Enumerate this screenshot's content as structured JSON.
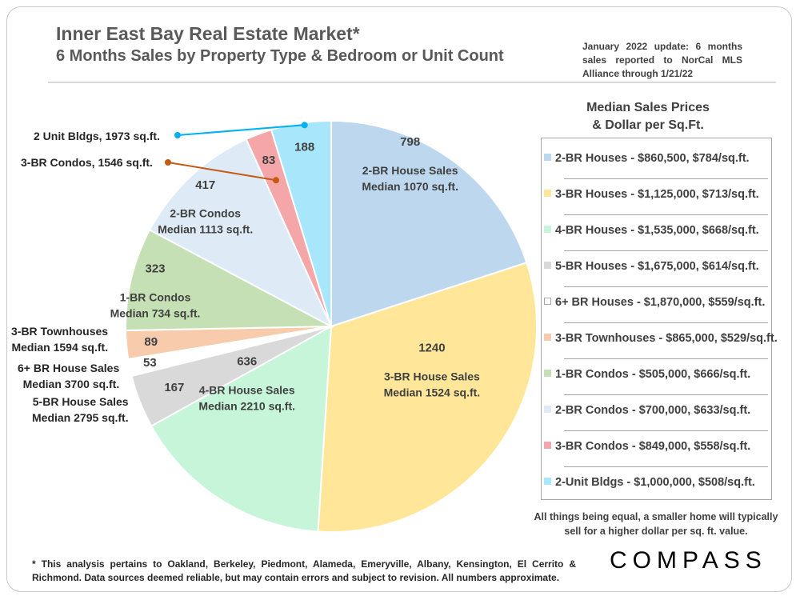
{
  "header": {
    "title": "Inner East Bay Real Estate Market*",
    "subtitle": "6 Months Sales by Property Type & Bedroom or Unit Count",
    "update_note": "January 2022 update: 6 months sales reported to NorCal MLS Alliance through 1/21/22"
  },
  "legend": {
    "title_line1": "Median Sales Prices",
    "title_line2": "& Dollar per Sq.Ft.",
    "items": [
      {
        "label": "2-BR Houses - $860,500, $784/sq.ft.",
        "color": "#bdd7ee"
      },
      {
        "label": "3-BR Houses - $1,125,000, $713/sq.ft.",
        "color": "#ffe699"
      },
      {
        "label": "4-BR Houses - $1,535,000, $668/sq.ft.",
        "color": "#c6f5d9"
      },
      {
        "label": "5-BR Houses - $1,675,000, $614/sq.ft.",
        "color": "#d9d9d9"
      },
      {
        "label": "6+ BR Houses - $1,870,000, $559/sq.ft.",
        "color": "#ffffff"
      },
      {
        "label": "3-BR Townhouses - $865,000, $529/sq.ft.",
        "color": "#f8cbad"
      },
      {
        "label": "1-BR Condos - $505,000, $666/sq.ft.",
        "color": "#c5e0b4"
      },
      {
        "label": "2-BR Condos - $700,000, $633/sq.ft.",
        "color": "#deebf7"
      },
      {
        "label": "3-BR Condos - $849,000, $558/sq.ft.",
        "color": "#f4a6a8"
      },
      {
        "label": "2-Unit Bldgs - $1,000,000, $508/sq.ft.",
        "color": "#a8e6fb"
      }
    ]
  },
  "bottom_note": "All things being equal, a smaller home will typically sell for a higher dollar per sq. ft. value.",
  "footnote": "* This analysis pertains to Oakland, Berkeley, Piedmont, Alameda, Emeryville, Albany, Kensington, El Cerrito & Richmond. Data sources deemed reliable, but may contain errors and subject to revision. All numbers approximate.",
  "logo": "COMPASS",
  "chart_data": {
    "type": "pie",
    "title": "6 Months Sales by Property Type & Bedroom or Unit Count",
    "start": "12 o'clock, clockwise",
    "slices": [
      {
        "name": "2-BR House Sales",
        "value": 798,
        "detail": "Median 1070 sq.ft.",
        "color": "#bdd7ee"
      },
      {
        "name": "3-BR House Sales",
        "value": 1240,
        "detail": "Median 1524 sq.ft.",
        "color": "#ffe699"
      },
      {
        "name": "4-BR House Sales",
        "value": 636,
        "detail": "Median 2210 sq.ft.",
        "color": "#c6f5d9"
      },
      {
        "name": "5-BR House Sales",
        "value": 167,
        "detail": "Median 2795 sq.ft.",
        "color": "#d9d9d9"
      },
      {
        "name": "6+ BR House Sales",
        "value": 53,
        "detail": "Median 3700 sq.ft.",
        "color": "#ffffff"
      },
      {
        "name": "3-BR Townhouses",
        "value": 89,
        "detail": "Median 1594 sq.ft.",
        "color": "#f8cbad"
      },
      {
        "name": "1-BR Condos",
        "value": 323,
        "detail": "Median 734 sq.ft.",
        "color": "#c5e0b4"
      },
      {
        "name": "2-BR Condos",
        "value": 417,
        "detail": "Median 1113 sq.ft.",
        "color": "#deebf7"
      },
      {
        "name": "3-BR Condos",
        "value": 83,
        "detail": "1546 sq.ft.",
        "color": "#f4a6a8"
      },
      {
        "name": "2 Unit Bldgs",
        "value": 188,
        "detail": "1973 sq.ft.",
        "color": "#a8e6fb"
      }
    ],
    "callouts": {
      "two_unit": {
        "text": "2 Unit Bldgs, 1973 sq.ft.",
        "color": "#00b0f0"
      },
      "three_br_condo": {
        "text": "3-BR Condos, 1546 sq.ft.",
        "color": "#c55a11"
      }
    }
  }
}
